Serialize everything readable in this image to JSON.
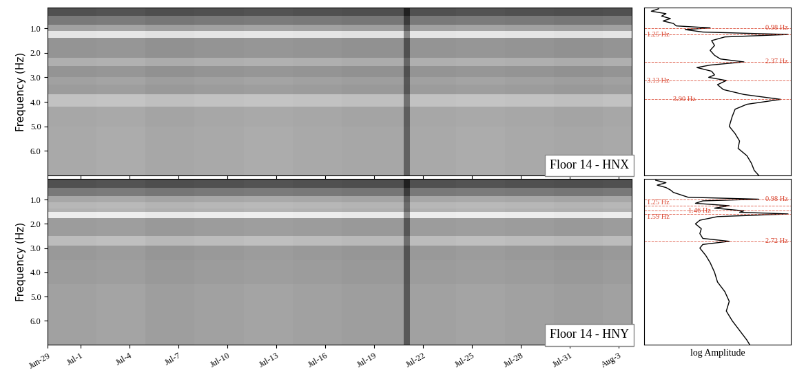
{
  "chart_data": [
    {
      "type": "heatmap",
      "annotation": "Floor 14 - HNX",
      "y_label": "Frequency (Hz)",
      "tick_labels": "y",
      "x_edges": [
        0,
        3,
        6,
        9,
        12,
        15,
        18,
        21.8,
        22.2,
        25,
        28,
        31,
        34,
        35.8
      ],
      "y_edges": [
        0.15,
        0.5,
        0.85,
        1.1,
        1.4,
        2.2,
        2.55,
        3.0,
        3.3,
        3.7,
        4.2,
        5.0,
        5.8,
        7.0
      ],
      "cells": [
        [
          0.3,
          0.31,
          0.29,
          0.3,
          0.31,
          0.3,
          0.29,
          0.12,
          0.3,
          0.31,
          0.3,
          0.29,
          0.3
        ],
        [
          0.45,
          0.46,
          0.44,
          0.45,
          0.46,
          0.45,
          0.44,
          0.22,
          0.45,
          0.46,
          0.45,
          0.44,
          0.45
        ],
        [
          0.6,
          0.61,
          0.59,
          0.6,
          0.61,
          0.6,
          0.59,
          0.33,
          0.6,
          0.61,
          0.6,
          0.59,
          0.6
        ],
        [
          0.85,
          0.86,
          0.84,
          0.85,
          0.86,
          0.85,
          0.84,
          0.5,
          0.85,
          0.86,
          0.85,
          0.84,
          0.85
        ],
        [
          0.55,
          0.56,
          0.54,
          0.55,
          0.56,
          0.55,
          0.54,
          0.3,
          0.55,
          0.56,
          0.55,
          0.54,
          0.55
        ],
        [
          0.65,
          0.66,
          0.64,
          0.65,
          0.66,
          0.65,
          0.64,
          0.38,
          0.65,
          0.66,
          0.65,
          0.64,
          0.65
        ],
        [
          0.55,
          0.56,
          0.54,
          0.55,
          0.56,
          0.55,
          0.54,
          0.3,
          0.55,
          0.56,
          0.55,
          0.54,
          0.55
        ],
        [
          0.6,
          0.61,
          0.59,
          0.6,
          0.61,
          0.6,
          0.59,
          0.33,
          0.6,
          0.61,
          0.6,
          0.59,
          0.6
        ],
        [
          0.58,
          0.59,
          0.57,
          0.58,
          0.59,
          0.58,
          0.57,
          0.32,
          0.58,
          0.59,
          0.58,
          0.57,
          0.58
        ],
        [
          0.72,
          0.73,
          0.71,
          0.72,
          0.73,
          0.72,
          0.71,
          0.42,
          0.72,
          0.73,
          0.72,
          0.71,
          0.72
        ],
        [
          0.62,
          0.63,
          0.61,
          0.62,
          0.63,
          0.62,
          0.61,
          0.35,
          0.62,
          0.63,
          0.62,
          0.61,
          0.62
        ],
        [
          0.63,
          0.64,
          0.62,
          0.63,
          0.64,
          0.63,
          0.62,
          0.36,
          0.63,
          0.64,
          0.63,
          0.62,
          0.63
        ],
        [
          0.63,
          0.64,
          0.62,
          0.63,
          0.64,
          0.63,
          0.62,
          0.36,
          0.63,
          0.64,
          0.63,
          0.62,
          0.63
        ]
      ],
      "color_range": [
        0.0,
        0.95
      ],
      "xlim": [
        0,
        35.8
      ],
      "ylim": [
        7.0,
        0.15
      ],
      "xticks": [
        {
          "value": 0,
          "label": "Jun-29"
        },
        {
          "value": 2,
          "label": "Jul-1"
        },
        {
          "value": 5,
          "label": "Jul-4"
        },
        {
          "value": 8,
          "label": "Jul-7"
        },
        {
          "value": 11,
          "label": "Jul-10"
        },
        {
          "value": 14,
          "label": "Jul-13"
        },
        {
          "value": 17,
          "label": "Jul-16"
        },
        {
          "value": 20,
          "label": "Jul-19"
        },
        {
          "value": 23,
          "label": "Jul-22"
        },
        {
          "value": 26,
          "label": "Jul-25"
        },
        {
          "value": 29,
          "label": "Jul-28"
        },
        {
          "value": 32,
          "label": "Jul-31"
        },
        {
          "value": 35,
          "label": "Aug-3"
        }
      ],
      "yticks": [
        {
          "value": 1.0,
          "label": "1.0"
        },
        {
          "value": 2.0,
          "label": "2.0"
        },
        {
          "value": 3.0,
          "label": "3.0"
        },
        {
          "value": 4.0,
          "label": "4.0"
        },
        {
          "value": 5.0,
          "label": "5.0"
        },
        {
          "value": 6.0,
          "label": "6.0"
        }
      ]
    },
    {
      "type": "line",
      "orientation": "horizontal",
      "color": "#000000",
      "tick_labels": false,
      "y": [
        0.2,
        0.3,
        0.4,
        0.5,
        0.6,
        0.7,
        0.8,
        0.9,
        0.98,
        1.05,
        1.15,
        1.25,
        1.35,
        1.5,
        1.7,
        1.9,
        2.1,
        2.25,
        2.37,
        2.5,
        2.6,
        2.75,
        2.9,
        3.0,
        3.13,
        3.3,
        3.5,
        3.7,
        3.9,
        4.1,
        4.3,
        4.6,
        5.0,
        5.3,
        5.6,
        5.9,
        6.2,
        6.5,
        6.8,
        7.0
      ],
      "values": [
        1.0,
        0.5,
        1.5,
        1.2,
        1.8,
        1.3,
        2.0,
        2.2,
        4.5,
        2.8,
        4.0,
        9.8,
        5.5,
        4.6,
        4.8,
        4.5,
        4.8,
        5.2,
        6.8,
        4.5,
        3.6,
        4.6,
        4.8,
        4.4,
        5.6,
        5.0,
        5.4,
        6.8,
        9.3,
        7.0,
        6.2,
        6.0,
        5.8,
        6.2,
        6.5,
        6.4,
        7.0,
        7.3,
        7.5,
        7.8
      ],
      "annotations": [
        {
          "text": "0.98 Hz",
          "y": 0.98
        },
        {
          "text": "1.25 Hz",
          "y": 1.25
        },
        {
          "text": "2.37 Hz",
          "y": 2.37
        },
        {
          "text": "3.13 Hz",
          "y": 3.13
        },
        {
          "text": "3.90 Hz",
          "y": 3.9
        }
      ],
      "xlim": [
        0,
        10
      ],
      "ylim": [
        7.0,
        0.15
      ],
      "xticks": [],
      "yticks": []
    },
    {
      "type": "heatmap",
      "annotation": "Floor 14 - HNY",
      "y_label": "Frequency (Hz)",
      "tick_labels": true,
      "x_edges": [
        0,
        3,
        6,
        9,
        12,
        15,
        18,
        21.8,
        22.2,
        25,
        28,
        31,
        34,
        35.8
      ],
      "y_edges": [
        0.15,
        0.5,
        0.85,
        1.1,
        1.35,
        1.5,
        1.75,
        2.5,
        2.9,
        3.5,
        4.5,
        5.5,
        7.0
      ],
      "cells": [
        [
          0.3,
          0.31,
          0.29,
          0.3,
          0.31,
          0.3,
          0.29,
          0.12,
          0.3,
          0.31,
          0.3,
          0.29,
          0.3
        ],
        [
          0.45,
          0.46,
          0.44,
          0.45,
          0.46,
          0.45,
          0.44,
          0.22,
          0.45,
          0.46,
          0.45,
          0.44,
          0.45
        ],
        [
          0.62,
          0.63,
          0.61,
          0.62,
          0.63,
          0.62,
          0.61,
          0.35,
          0.62,
          0.63,
          0.62,
          0.61,
          0.62
        ],
        [
          0.68,
          0.69,
          0.67,
          0.68,
          0.69,
          0.68,
          0.67,
          0.4,
          0.68,
          0.69,
          0.68,
          0.67,
          0.68
        ],
        [
          0.66,
          0.67,
          0.65,
          0.66,
          0.67,
          0.66,
          0.65,
          0.38,
          0.66,
          0.67,
          0.66,
          0.65,
          0.66
        ],
        [
          0.88,
          0.89,
          0.87,
          0.88,
          0.89,
          0.88,
          0.87,
          0.52,
          0.88,
          0.89,
          0.88,
          0.87,
          0.88
        ],
        [
          0.58,
          0.59,
          0.57,
          0.58,
          0.59,
          0.58,
          0.57,
          0.32,
          0.58,
          0.59,
          0.58,
          0.57,
          0.58
        ],
        [
          0.7,
          0.71,
          0.69,
          0.7,
          0.71,
          0.7,
          0.69,
          0.41,
          0.7,
          0.71,
          0.7,
          0.69,
          0.7
        ],
        [
          0.57,
          0.58,
          0.56,
          0.57,
          0.58,
          0.57,
          0.56,
          0.31,
          0.57,
          0.58,
          0.57,
          0.56,
          0.57
        ],
        [
          0.58,
          0.59,
          0.57,
          0.58,
          0.59,
          0.58,
          0.57,
          0.32,
          0.58,
          0.59,
          0.58,
          0.57,
          0.58
        ],
        [
          0.6,
          0.61,
          0.59,
          0.6,
          0.61,
          0.6,
          0.59,
          0.33,
          0.6,
          0.61,
          0.6,
          0.59,
          0.6
        ],
        [
          0.6,
          0.61,
          0.59,
          0.6,
          0.61,
          0.6,
          0.59,
          0.33,
          0.6,
          0.61,
          0.6,
          0.59,
          0.6
        ]
      ],
      "color_range": [
        0.0,
        0.95
      ],
      "xlim": [
        0,
        35.8
      ],
      "ylim": [
        7.0,
        0.15
      ],
      "xticks": [
        {
          "value": 0,
          "label": "Jun-29"
        },
        {
          "value": 2,
          "label": "Jul-1"
        },
        {
          "value": 5,
          "label": "Jul-4"
        },
        {
          "value": 8,
          "label": "Jul-7"
        },
        {
          "value": 11,
          "label": "Jul-10"
        },
        {
          "value": 14,
          "label": "Jul-13"
        },
        {
          "value": 17,
          "label": "Jul-16"
        },
        {
          "value": 20,
          "label": "Jul-19"
        },
        {
          "value": 23,
          "label": "Jul-22"
        },
        {
          "value": 26,
          "label": "Jul-25"
        },
        {
          "value": 29,
          "label": "Jul-28"
        },
        {
          "value": 32,
          "label": "Jul-31"
        },
        {
          "value": 35,
          "label": "Aug-3"
        }
      ],
      "yticks": [
        {
          "value": 1.0,
          "label": "1.0"
        },
        {
          "value": 2.0,
          "label": "2.0"
        },
        {
          "value": 3.0,
          "label": "3.0"
        },
        {
          "value": 4.0,
          "label": "4.0"
        },
        {
          "value": 5.0,
          "label": "5.0"
        },
        {
          "value": 6.0,
          "label": "6.0"
        }
      ]
    },
    {
      "type": "line",
      "orientation": "horizontal",
      "color": "#000000",
      "tick_labels": false,
      "x_label": "log Amplitude",
      "y": [
        0.2,
        0.3,
        0.4,
        0.5,
        0.6,
        0.7,
        0.8,
        0.9,
        0.98,
        1.05,
        1.15,
        1.25,
        1.35,
        1.46,
        1.52,
        1.59,
        1.7,
        1.85,
        2.0,
        2.2,
        2.4,
        2.6,
        2.72,
        2.85,
        3.0,
        3.3,
        3.6,
        4.0,
        4.4,
        4.8,
        5.2,
        5.6,
        6.0,
        6.4,
        6.8,
        7.0
      ],
      "values": [
        0.8,
        1.5,
        0.9,
        1.5,
        1.8,
        2.0,
        2.5,
        3.0,
        7.8,
        4.0,
        3.5,
        5.8,
        4.8,
        6.8,
        6.5,
        9.8,
        5.0,
        3.8,
        3.5,
        3.9,
        3.8,
        4.0,
        5.8,
        4.0,
        3.8,
        4.2,
        4.5,
        4.8,
        5.0,
        5.5,
        5.8,
        5.6,
        6.0,
        6.5,
        7.0,
        7.2
      ],
      "annotations": [
        {
          "text": "0.98 Hz",
          "y": 0.98
        },
        {
          "text": "1.25 Hz",
          "y": 1.25
        },
        {
          "text": "1.46 Hz",
          "y": 1.46
        },
        {
          "text": "1.59 Hz",
          "y": 1.59
        },
        {
          "text": "2.72 Hz",
          "y": 2.72
        }
      ],
      "xlim": [
        0,
        10
      ],
      "ylim": [
        7.0,
        0.15
      ],
      "xticks": [],
      "yticks": []
    }
  ]
}
